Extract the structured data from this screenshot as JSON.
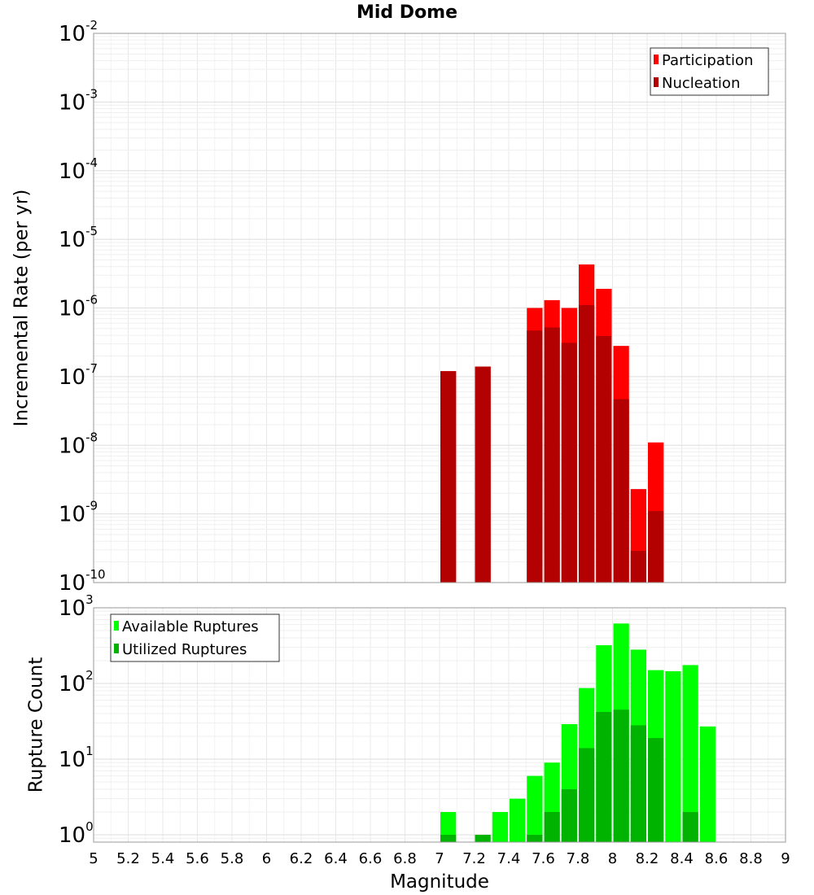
{
  "chart_data": [
    {
      "type": "bar",
      "title": "Mid Dome",
      "ylabel": "Incremental Rate (per yr)",
      "xlim": [
        5,
        9
      ],
      "ylim": [
        1e-10,
        0.01
      ],
      "yscale": "log",
      "grid": true,
      "legend_position": "top-right",
      "bar_width": 0.1,
      "y_ticks": [
        {
          "base": "10",
          "exp": "-10",
          "value": 1e-10
        },
        {
          "base": "10",
          "exp": "-9",
          "value": 1e-09
        },
        {
          "base": "10",
          "exp": "-8",
          "value": 1e-08
        },
        {
          "base": "10",
          "exp": "-7",
          "value": 1e-07
        },
        {
          "base": "10",
          "exp": "-6",
          "value": 1e-06
        },
        {
          "base": "10",
          "exp": "-5",
          "value": 1e-05
        },
        {
          "base": "10",
          "exp": "-4",
          "value": 0.0001
        },
        {
          "base": "10",
          "exp": "-3",
          "value": 0.001
        },
        {
          "base": "10",
          "exp": "-2",
          "value": 0.01
        }
      ],
      "series": [
        {
          "name": "Participation",
          "color": "#ff0000",
          "points": [
            {
              "x": 7.05,
              "y": 1.2e-07
            },
            {
              "x": 7.25,
              "y": 1.4e-07
            },
            {
              "x": 7.55,
              "y": 1e-06
            },
            {
              "x": 7.65,
              "y": 1.3e-06
            },
            {
              "x": 7.75,
              "y": 1e-06
            },
            {
              "x": 7.85,
              "y": 4.3e-06
            },
            {
              "x": 7.95,
              "y": 1.9e-06
            },
            {
              "x": 8.05,
              "y": 2.8e-07
            },
            {
              "x": 8.15,
              "y": 2.3e-09
            },
            {
              "x": 8.25,
              "y": 1.1e-08
            }
          ]
        },
        {
          "name": "Nucleation",
          "color": "#b30000",
          "points": [
            {
              "x": 7.05,
              "y": 1.2e-07
            },
            {
              "x": 7.25,
              "y": 1.4e-07
            },
            {
              "x": 7.55,
              "y": 4.7e-07
            },
            {
              "x": 7.65,
              "y": 5.2e-07
            },
            {
              "x": 7.75,
              "y": 3.1e-07
            },
            {
              "x": 7.85,
              "y": 1.1e-06
            },
            {
              "x": 7.95,
              "y": 3.9e-07
            },
            {
              "x": 8.05,
              "y": 4.7e-08
            },
            {
              "x": 8.15,
              "y": 2.9e-10
            },
            {
              "x": 8.25,
              "y": 1.1e-09
            }
          ]
        }
      ]
    },
    {
      "type": "bar",
      "title": "",
      "xlabel": "Magnitude",
      "ylabel": "Rupture Count",
      "xlim": [
        5,
        9
      ],
      "ylim": [
        0.8,
        1000
      ],
      "yscale": "log",
      "grid": true,
      "legend_position": "top-left",
      "bar_width": 0.1,
      "x_ticks": [
        "5",
        "5.2",
        "5.4",
        "5.6",
        "5.8",
        "6",
        "6.2",
        "6.4",
        "6.6",
        "6.8",
        "7",
        "7.2",
        "7.4",
        "7.6",
        "7.8",
        "8",
        "8.2",
        "8.4",
        "8.6",
        "8.8",
        "9"
      ],
      "y_ticks": [
        {
          "base": "10",
          "exp": "0",
          "value": 1
        },
        {
          "base": "10",
          "exp": "1",
          "value": 10
        },
        {
          "base": "10",
          "exp": "2",
          "value": 100
        },
        {
          "base": "10",
          "exp": "3",
          "value": 1000
        }
      ],
      "series": [
        {
          "name": "Available Ruptures",
          "color": "#00ff00",
          "points": [
            {
              "x": 7.05,
              "y": 2
            },
            {
              "x": 7.35,
              "y": 2
            },
            {
              "x": 7.45,
              "y": 3
            },
            {
              "x": 7.55,
              "y": 6
            },
            {
              "x": 7.65,
              "y": 9
            },
            {
              "x": 7.75,
              "y": 29
            },
            {
              "x": 7.85,
              "y": 87
            },
            {
              "x": 7.95,
              "y": 320
            },
            {
              "x": 8.05,
              "y": 620
            },
            {
              "x": 8.15,
              "y": 280
            },
            {
              "x": 8.25,
              "y": 150
            },
            {
              "x": 8.35,
              "y": 145
            },
            {
              "x": 8.45,
              "y": 175
            },
            {
              "x": 8.55,
              "y": 27
            }
          ]
        },
        {
          "name": "Utilized Ruptures",
          "color": "#00b300",
          "points": [
            {
              "x": 7.05,
              "y": 1
            },
            {
              "x": 7.25,
              "y": 1
            },
            {
              "x": 7.55,
              "y": 1
            },
            {
              "x": 7.65,
              "y": 2
            },
            {
              "x": 7.75,
              "y": 4
            },
            {
              "x": 7.85,
              "y": 14
            },
            {
              "x": 7.95,
              "y": 42
            },
            {
              "x": 8.05,
              "y": 45
            },
            {
              "x": 8.15,
              "y": 28
            },
            {
              "x": 8.25,
              "y": 19
            },
            {
              "x": 8.45,
              "y": 2
            }
          ]
        }
      ]
    }
  ]
}
